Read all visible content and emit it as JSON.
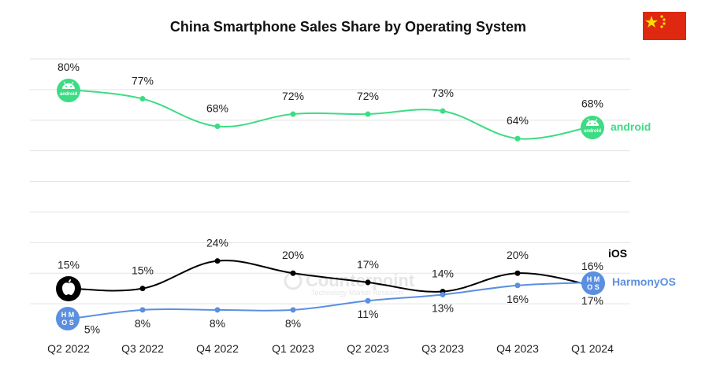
{
  "chart_data": {
    "type": "line",
    "title": "China Smartphone Sales Share by Operating System",
    "categories": [
      "Q2 2022",
      "Q3 2022",
      "Q4 2022",
      "Q1 2023",
      "Q2 2023",
      "Q3 2023",
      "Q4 2023",
      "Q1 2024"
    ],
    "series": [
      {
        "name": "android",
        "color": "#3ddc84",
        "values": [
          80,
          77,
          68,
          72,
          72,
          73,
          64,
          68
        ],
        "labels": [
          "80%",
          "77%",
          "68%",
          "72%",
          "72%",
          "73%",
          "64%",
          "68%"
        ]
      },
      {
        "name": "iOS",
        "color": "#000000",
        "values": [
          15,
          15,
          24,
          20,
          17,
          14,
          20,
          16
        ],
        "labels": [
          "15%",
          "15%",
          "24%",
          "20%",
          "17%",
          "14%",
          "20%",
          "16%"
        ]
      },
      {
        "name": "HarmonyOS",
        "color": "#5b8fe0",
        "values": [
          5,
          8,
          8,
          8,
          11,
          13,
          16,
          17
        ],
        "labels": [
          "5%",
          "8%",
          "8%",
          "8%",
          "11%",
          "13%",
          "16%",
          "17%"
        ]
      }
    ],
    "ylim": [
      0,
      90
    ],
    "grid": true,
    "legend": "end-of-line labels"
  },
  "icons": {
    "android": "android-logo-icon",
    "ios": "apple-logo-icon",
    "harmony": "harmonyos-logo-icon",
    "flag": "china-flag-icon",
    "android_text": "android",
    "harmony_text": "HMOS"
  },
  "watermark": "Counterpoint",
  "watermark_sub": "Technology Market Research"
}
